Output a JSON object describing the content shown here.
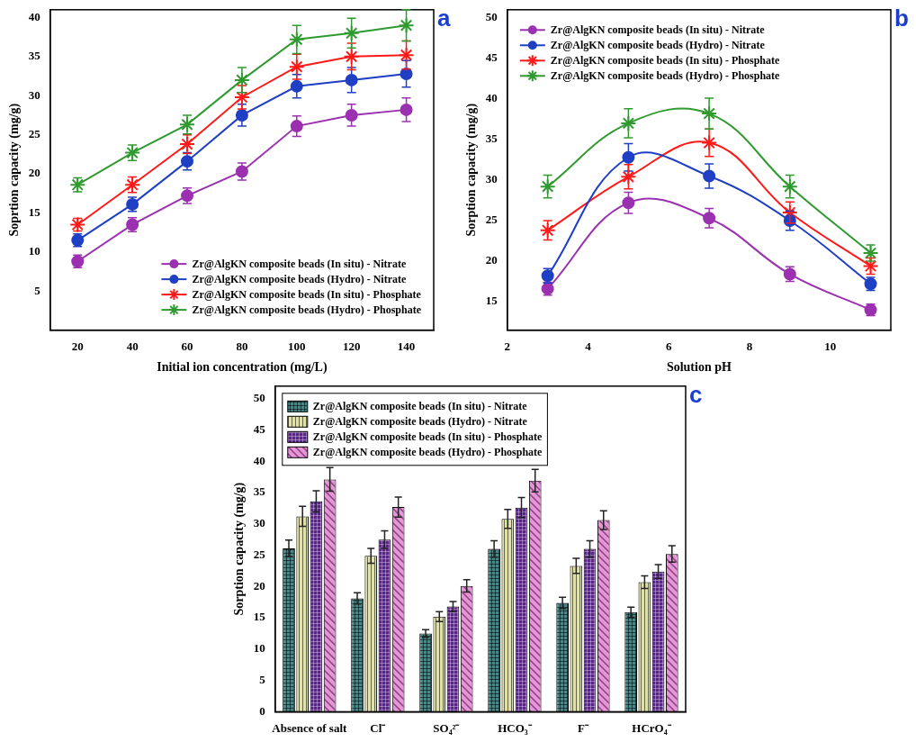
{
  "chart_data": [
    {
      "type": "line",
      "title": "a",
      "x_label": "Initial ion concentration (mg/L)",
      "y_label": "Soprtion capacity (mg/g)",
      "x": [
        20,
        40,
        60,
        80,
        100,
        120,
        140
      ],
      "xlim": [
        10,
        150
      ],
      "xticks": [
        20,
        40,
        60,
        80,
        100,
        120,
        140
      ],
      "ylim": [
        0,
        41
      ],
      "yticks": [
        5,
        10,
        15,
        20,
        25,
        30,
        35,
        40
      ],
      "grid": false,
      "legend": "lower right",
      "line_style": "solid",
      "series": [
        {
          "name": "Zr@AlgKN composite beads (In situ) - Nitrate",
          "color": "#9b30b0",
          "marker": "circle",
          "values": [
            8.8,
            13.5,
            17.2,
            20.3,
            26.1,
            27.5,
            28.2
          ],
          "errors": [
            0.8,
            0.9,
            1.0,
            1.1,
            1.3,
            1.4,
            1.5
          ]
        },
        {
          "name": "Zr@AlgKN composite beads (Hydro) - Nitrate",
          "color": "#1f3fc4",
          "marker": "circle",
          "values": [
            11.5,
            16.1,
            21.6,
            27.5,
            31.2,
            32.0,
            32.8
          ],
          "errors": [
            0.8,
            0.9,
            1.1,
            1.4,
            1.5,
            1.6,
            1.7
          ]
        },
        {
          "name": "Zr@AlgKN composite beads (In situ) - Phosphate",
          "color": "#ff1a1a",
          "marker": "star",
          "values": [
            13.5,
            18.6,
            23.8,
            29.8,
            33.7,
            35.0,
            35.2
          ],
          "errors": [
            0.8,
            1.0,
            1.2,
            1.5,
            1.6,
            1.7,
            1.8
          ]
        },
        {
          "name": "Zr@AlgKN composite beads (Hydro) - Phosphate",
          "color": "#2f9a2f",
          "marker": "star",
          "values": [
            18.6,
            22.7,
            26.3,
            32.0,
            37.2,
            38.0,
            39.0
          ],
          "errors": [
            0.9,
            1.0,
            1.2,
            1.6,
            1.8,
            1.9,
            2.0
          ]
        }
      ]
    },
    {
      "type": "line",
      "title": "b",
      "x_label": "Solution pH",
      "y_label": "Sorption capacity (mg/g)",
      "x": [
        3,
        5,
        7,
        9,
        11
      ],
      "xlim": [
        2,
        11.5
      ],
      "xticks": [
        2,
        4,
        6,
        8,
        10
      ],
      "ylim": [
        11.5,
        51
      ],
      "yticks": [
        15,
        20,
        25,
        30,
        35,
        40,
        45,
        50
      ],
      "grid": false,
      "legend": "upper left",
      "line_style": "smooth",
      "series": [
        {
          "name": "Zr@AlgKN composite beads (In situ) - Nitrate",
          "color": "#9b30b0",
          "marker": "circle",
          "values": [
            16.6,
            27.2,
            25.3,
            18.4,
            14.0
          ],
          "errors": [
            0.8,
            1.3,
            1.2,
            0.9,
            0.7
          ]
        },
        {
          "name": "Zr@AlgKN composite beads (Hydro) - Nitrate",
          "color": "#1f3fc4",
          "marker": "circle",
          "values": [
            18.2,
            32.8,
            30.5,
            25.0,
            17.2
          ],
          "errors": [
            0.9,
            1.7,
            1.5,
            1.2,
            0.8
          ]
        },
        {
          "name": "Zr@AlgKN composite beads (In situ) - Phosphate",
          "color": "#ff1a1a",
          "marker": "star",
          "values": [
            23.8,
            30.4,
            34.6,
            26.0,
            19.4
          ],
          "errors": [
            1.2,
            1.5,
            1.7,
            1.3,
            1.0
          ]
        },
        {
          "name": "Zr@AlgKN composite beads (Hydro) - Phosphate",
          "color": "#2f9a2f",
          "marker": "star",
          "values": [
            29.2,
            37.0,
            38.2,
            29.2,
            21.0
          ],
          "errors": [
            1.4,
            1.8,
            1.9,
            1.4,
            1.0
          ]
        }
      ]
    },
    {
      "type": "bar",
      "title": "c",
      "y_label": "Sorption capacity (mg/g)",
      "categories": [
        "Absence of salt",
        "Cl⁻",
        "SO₄²⁻",
        "HCO₃⁻",
        "F⁻",
        "HCrO₄⁻"
      ],
      "ylim": [
        0,
        52
      ],
      "yticks": [
        0,
        5,
        10,
        15,
        20,
        25,
        30,
        35,
        40,
        45,
        50
      ],
      "grid": false,
      "legend": "upper left",
      "series": [
        {
          "name": "Zr@AlgKN composite beads (In situ) - Nitrate",
          "color": "#3f8c8c",
          "values": [
            26.1,
            18.1,
            12.5,
            26.0,
            17.4,
            15.9
          ],
          "errors": [
            1.3,
            0.9,
            0.6,
            1.3,
            0.9,
            0.8
          ]
        },
        {
          "name": "Zr@AlgKN composite beads (Hydro) - Nitrate",
          "color": "#e3e3a0",
          "values": [
            31.2,
            24.9,
            15.2,
            30.8,
            23.3,
            20.7
          ],
          "errors": [
            1.6,
            1.2,
            0.8,
            1.5,
            1.2,
            1.0
          ]
        },
        {
          "name": "Zr@AlgKN composite beads (In situ) - Phosphate",
          "color": "#5b2290",
          "values": [
            33.6,
            27.5,
            16.8,
            32.6,
            26.0,
            22.4
          ],
          "errors": [
            1.7,
            1.4,
            0.8,
            1.6,
            1.3,
            1.1
          ]
        },
        {
          "name": "Zr@AlgKN composite beads (Hydro) - Phosphate",
          "color": "#e596d6",
          "values": [
            37.1,
            32.7,
            20.1,
            36.9,
            30.6,
            25.2
          ],
          "errors": [
            1.9,
            1.6,
            1.0,
            1.8,
            1.5,
            1.3
          ]
        }
      ]
    }
  ]
}
